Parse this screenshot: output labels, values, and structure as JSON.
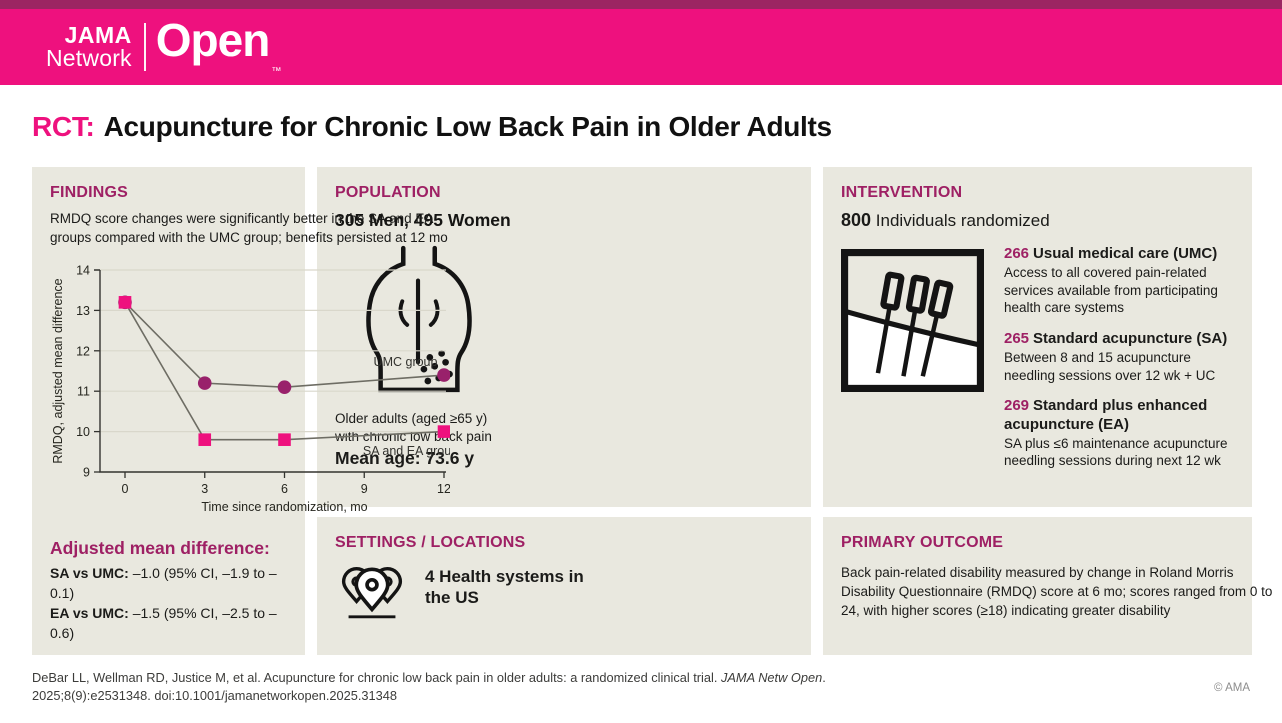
{
  "header": {
    "brand_line1": "JAMA",
    "brand_line2": "Network",
    "brand_open": "Open",
    "brand_tm": "™"
  },
  "title": {
    "prefix": "RCT:",
    "text": "Acupuncture for Chronic Low Back Pain in Older Adults"
  },
  "population": {
    "heading": "POPULATION",
    "subtitle": "305 Men, 495 Women",
    "icon": "back-pain-icon",
    "desc_line1": "Older adults (aged ≥65 y)",
    "desc_line2": "with chronic low back pain",
    "mean_age": "Mean age: 73.6 y"
  },
  "intervention": {
    "heading": "INTERVENTION",
    "count": "800",
    "count_label": "Individuals randomized",
    "icon": "acupuncture-needles-icon",
    "groups": [
      {
        "n": "266",
        "name": "Usual medical care (UMC)",
        "desc": "Access to all covered pain-related services available from participating health care systems"
      },
      {
        "n": "265",
        "name": "Standard acupuncture (SA)",
        "desc": "Between 8 and 15 acupuncture needling sessions over 12 wk + UC"
      },
      {
        "n": "269",
        "name": "Standard plus enhanced acupuncture (EA)",
        "desc": "SA plus ≤6 maintenance acupuncture needling sessions during next 12 wk"
      }
    ]
  },
  "settings": {
    "heading": "SETTINGS / LOCATIONS",
    "icon": "map-pins-icon",
    "text": "4 Health systems in the US"
  },
  "primary_outcome": {
    "heading": "PRIMARY OUTCOME",
    "text": "Back pain-related disability measured by change in Roland Morris Disability Questionnaire (RMDQ) score at 6 mo; scores ranged from 0 to 24, with higher scores (≥18) indicating greater disability"
  },
  "findings": {
    "heading": "FINDINGS",
    "summary": "RMDQ score changes were significantly better in the SA and EA groups compared with the UMC group; benefits persisted at 12 mo",
    "adjusted_heading": "Adjusted mean difference:",
    "comparisons": [
      {
        "label": "SA vs UMC:",
        "value": "–1.0 (95% CI, –1.9 to –0.1)"
      },
      {
        "label": "EA vs UMC:",
        "value": "–1.5 (95% CI, –2.5 to –0.6)"
      }
    ]
  },
  "chart_data": {
    "type": "line",
    "x": [
      0,
      3,
      6,
      12
    ],
    "series": [
      {
        "name": "UMC group",
        "values": [
          13.2,
          11.2,
          11.1,
          11.4
        ],
        "color": "#99216b",
        "marker": "circle",
        "label_pos": {
          "x": 9.35,
          "y": 11.72
        }
      },
      {
        "name": "SA and EA groups",
        "values": [
          13.2,
          9.8,
          9.8,
          10.0
        ],
        "color": "#ee117e",
        "marker": "square",
        "label_pos": {
          "x": 8.95,
          "y": 9.52
        }
      }
    ],
    "xlabel": "Time since randomization, mo",
    "ylabel": "RMDQ, adjusted mean difference",
    "xticks": [
      0,
      3,
      6,
      9,
      12
    ],
    "yticks": [
      9,
      10,
      11,
      12,
      13,
      14
    ],
    "xlim": [
      0,
      12
    ],
    "ylim": [
      9,
      14
    ],
    "grid": "horizontal",
    "legend": "inline-labels",
    "line_color": "#6e6d64"
  },
  "footer": {
    "citation_part1": "DeBar LL, Wellman RD, Justice M, et al. Acupuncture for chronic low back pain in older adults: a randomized clinical trial. ",
    "citation_journal": "JAMA Netw Open",
    "citation_period": ".",
    "citation_line2": "2025;8(9):e2531348. doi:10.1001/jamanetworkopen.2025.31348",
    "copyright": "© AMA"
  }
}
